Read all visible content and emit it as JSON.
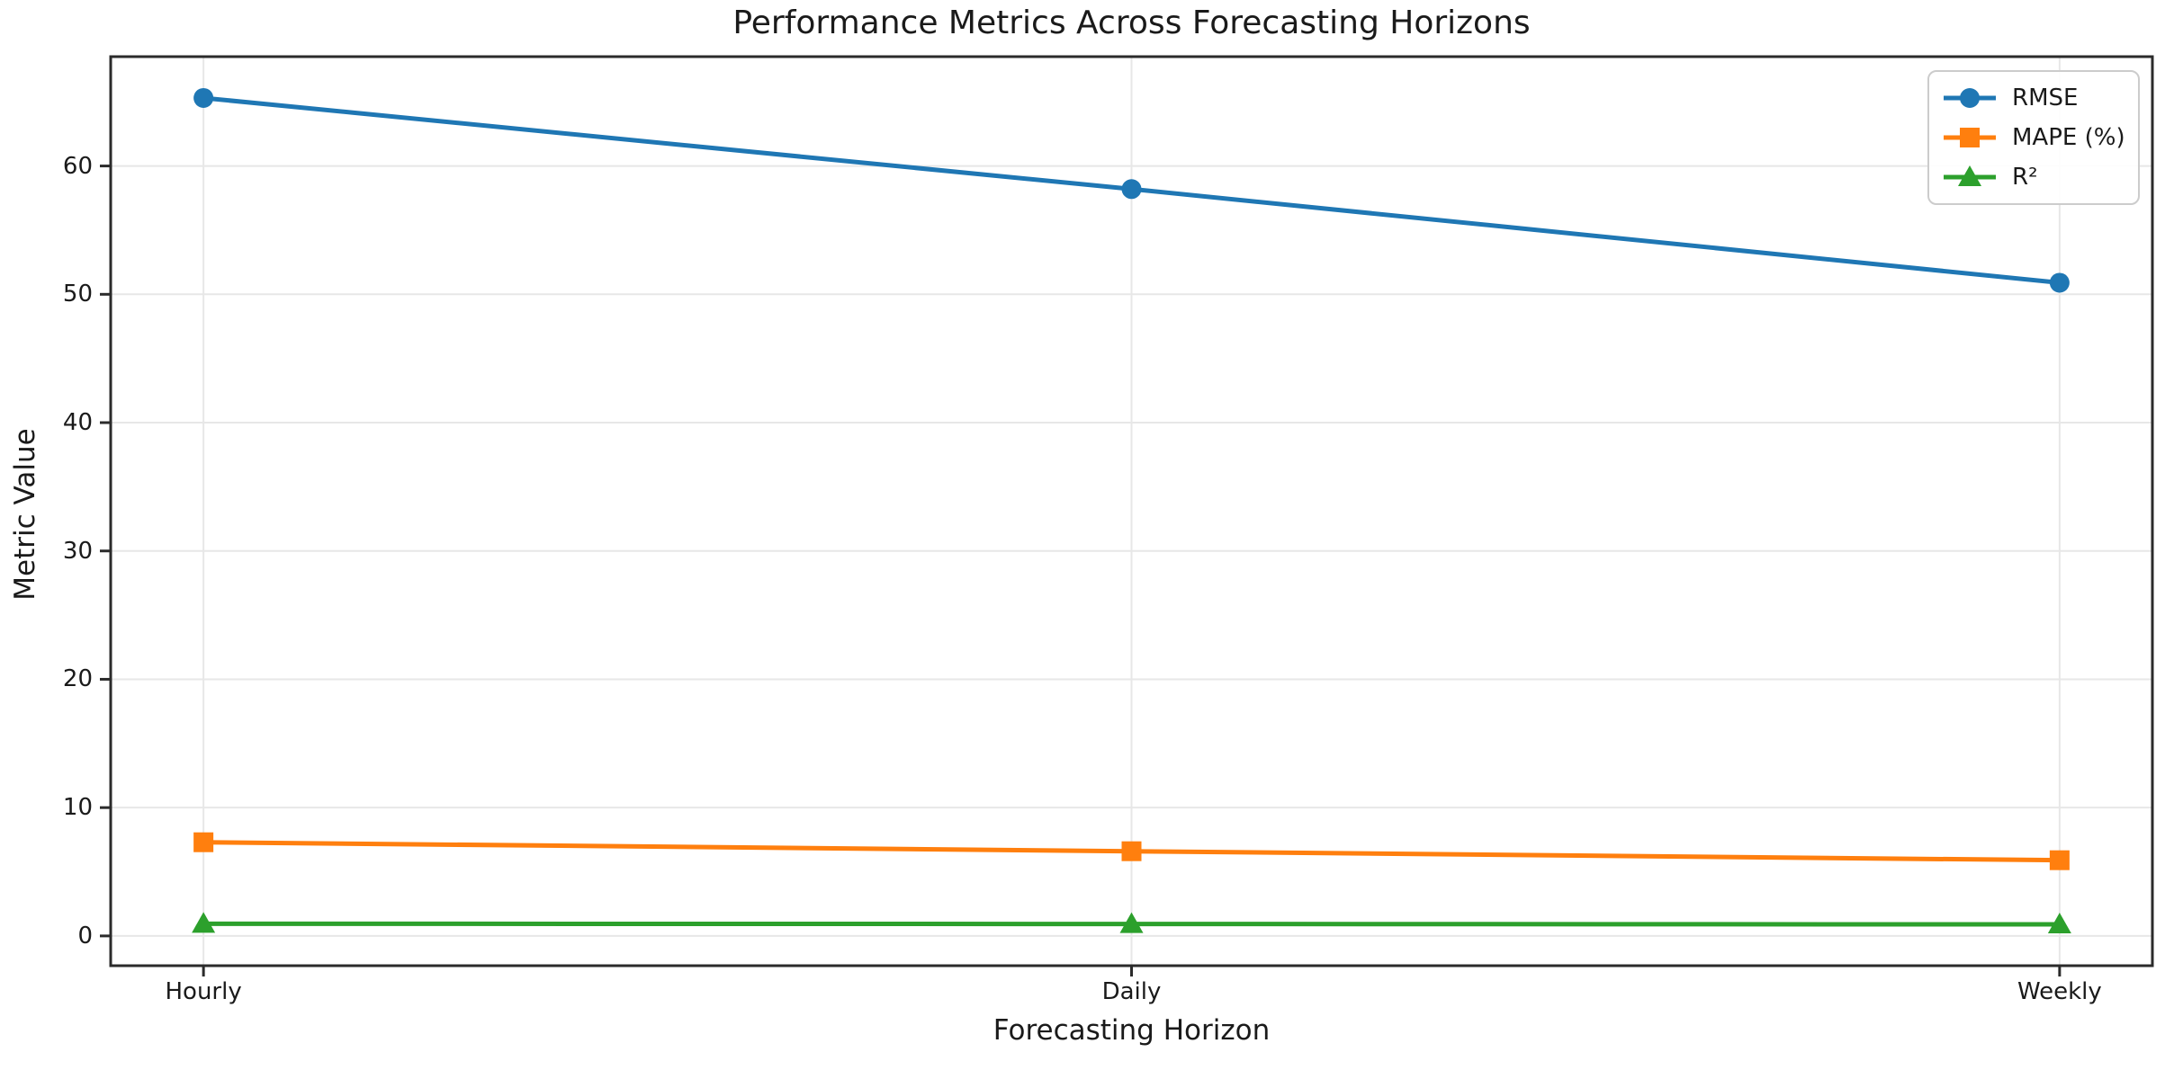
{
  "chart_data": {
    "type": "line",
    "title": "Performance Metrics Across Forecasting Horizons",
    "xlabel": "Forecasting Horizon",
    "ylabel": "Metric Value",
    "categories": [
      "Hourly",
      "Daily",
      "Weekly"
    ],
    "series": [
      {
        "name": "RMSE",
        "marker": "circle",
        "color": "#1f77b4",
        "values": [
          65.3,
          58.2,
          50.9
        ]
      },
      {
        "name": "MAPE (%)",
        "marker": "square",
        "color": "#ff7f0e",
        "values": [
          7.3,
          6.6,
          5.9
        ]
      },
      {
        "name": "R²",
        "marker": "triangle",
        "color": "#2ca02c",
        "values": [
          0.95,
          0.93,
          0.9
        ]
      }
    ],
    "yticks": [
      0,
      10,
      20,
      30,
      40,
      50,
      60
    ],
    "ylim": [
      -2.32,
      68.52
    ],
    "grid": true,
    "grid_color": "#e7e7e7",
    "spine_color": "#2b2b2b",
    "legend_position": "upper right"
  }
}
